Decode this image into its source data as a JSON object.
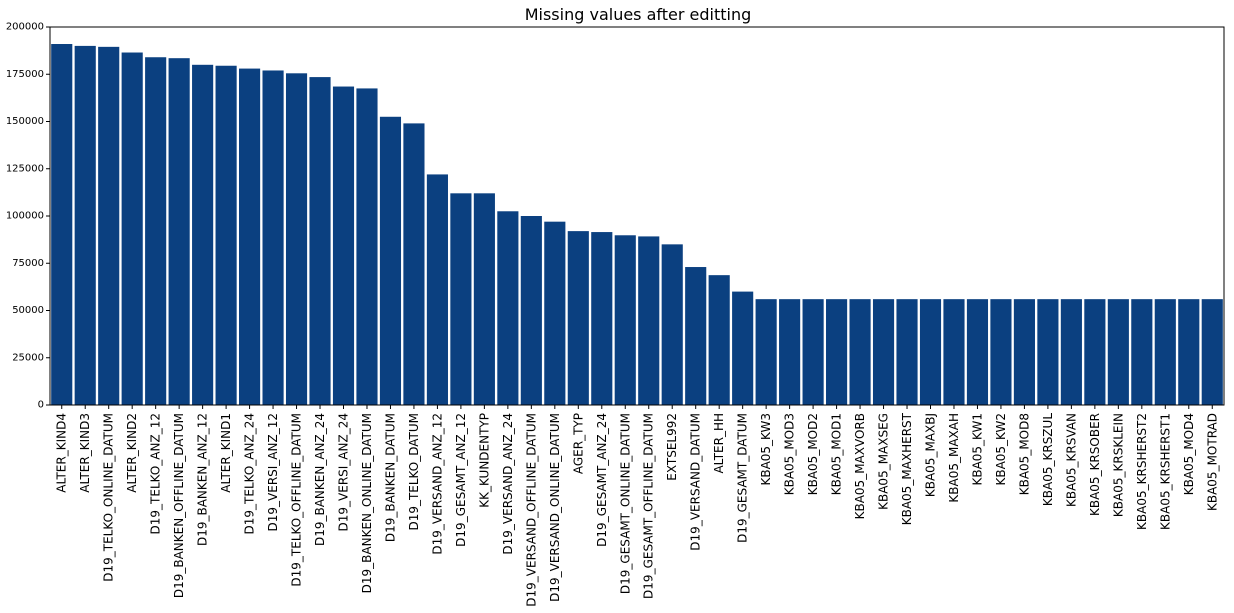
{
  "chart_data": {
    "type": "bar",
    "title": "Missing values after editting",
    "xlabel": "",
    "ylabel": "",
    "ylim": [
      0,
      200000
    ],
    "yticks": [
      0,
      25000,
      50000,
      75000,
      100000,
      125000,
      150000,
      175000,
      200000
    ],
    "ytick_labels": [
      "0",
      "25000",
      "50000",
      "75000",
      "100000",
      "125000",
      "150000",
      "175000",
      "200000"
    ],
    "bar_color": "#0b4080",
    "grid": false,
    "categories": [
      "ALTER_KIND4",
      "ALTER_KIND3",
      "D19_TELKO_ONLINE_DATUM",
      "ALTER_KIND2",
      "D19_TELKO_ANZ_12",
      "D19_BANKEN_OFFLINE_DATUM",
      "D19_BANKEN_ANZ_12",
      "ALTER_KIND1",
      "D19_TELKO_ANZ_24",
      "D19_VERSI_ANZ_12",
      "D19_TELKO_OFFLINE_DATUM",
      "D19_BANKEN_ANZ_24",
      "D19_VERSI_ANZ_24",
      "D19_BANKEN_ONLINE_DATUM",
      "D19_BANKEN_DATUM",
      "D19_TELKO_DATUM",
      "D19_VERSAND_ANZ_12",
      "D19_GESAMT_ANZ_12",
      "KK_KUNDENTYP",
      "D19_VERSAND_ANZ_24",
      "D19_VERSAND_OFFLINE_DATUM",
      "D19_VERSAND_ONLINE_DATUM",
      "AGER_TYP",
      "D19_GESAMT_ANZ_24",
      "D19_GESAMT_ONLINE_DATUM",
      "D19_GESAMT_OFFLINE_DATUM",
      "EXTSEL992",
      "D19_VERSAND_DATUM",
      "ALTER_HH",
      "D19_GESAMT_DATUM",
      "KBA05_KW3",
      "KBA05_MOD3",
      "KBA05_MOD2",
      "KBA05_MOD1",
      "KBA05_MAXVORB",
      "KBA05_MAXSEG",
      "KBA05_MAXHERST",
      "KBA05_MAXBJ",
      "KBA05_MAXAH",
      "KBA05_KW1",
      "KBA05_KW2",
      "KBA05_MOD8",
      "KBA05_KRSZUL",
      "KBA05_KRSVAN",
      "KBA05_KRSOBER",
      "KBA05_KRSKLEIN",
      "KBA05_KRSHERST2",
      "KBA05_KRSHERST1",
      "KBA05_MOD4",
      "KBA05_MOTRAD"
    ],
    "values": [
      191000,
      190000,
      189500,
      186500,
      184000,
      183500,
      180000,
      179500,
      178000,
      177000,
      175500,
      173500,
      168500,
      167500,
      152500,
      149000,
      122000,
      112000,
      112000,
      102500,
      100000,
      97000,
      92000,
      91500,
      89800,
      89200,
      85000,
      73000,
      68700,
      60000,
      56000,
      56000,
      56000,
      56000,
      56000,
      56000,
      56000,
      56000,
      56000,
      56000,
      56000,
      56000,
      56000,
      56000,
      56000,
      56000,
      56000,
      56000,
      56000,
      56000
    ]
  }
}
